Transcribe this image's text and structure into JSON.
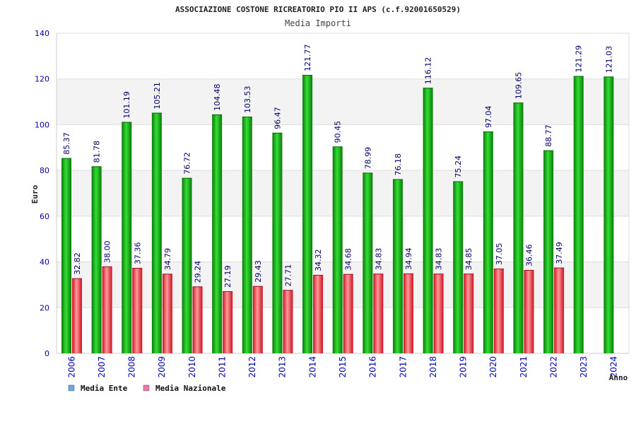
{
  "chart_data": {
    "type": "bar",
    "title": "ASSOCIAZIONE COSTONE RICREATORIO PIO II APS (c.f.92001650529)",
    "subtitle": "Media Importi",
    "xlabel": "Anno",
    "ylabel": "Euro",
    "ylim": [
      0,
      140
    ],
    "yticks": [
      "0",
      "20",
      "40",
      "60",
      "80",
      "100",
      "120",
      "140"
    ],
    "grid": true,
    "legend_position": "bottom-left",
    "categories": [
      "2006",
      "2007",
      "2008",
      "2009",
      "2010",
      "2011",
      "2012",
      "2013",
      "2014",
      "2015",
      "2016",
      "2017",
      "2018",
      "2019",
      "2020",
      "2021",
      "2022",
      "2023",
      "2024"
    ],
    "series": [
      {
        "name": "Media Ente",
        "color": "#22bb22",
        "legend_color": "#66aaee",
        "values": [
          85.37,
          81.78,
          101.19,
          105.21,
          76.72,
          104.48,
          103.53,
          96.47,
          121.77,
          90.45,
          78.99,
          76.18,
          116.12,
          75.24,
          97.04,
          109.65,
          88.77,
          121.29,
          121.03
        ],
        "labels": [
          "85.37",
          "81.78",
          "101.19",
          "105.21",
          "76.72",
          "104.48",
          "103.53",
          "96.47",
          "121.77",
          "90.45",
          "78.99",
          "76.18",
          "116.12",
          "75.24",
          "97.04",
          "109.65",
          "88.77",
          "121.29",
          "121.03"
        ]
      },
      {
        "name": "Media Nazionale",
        "color": "#ee3344",
        "legend_color": "#ee77aa",
        "values": [
          32.82,
          38.0,
          37.36,
          34.79,
          29.24,
          27.19,
          29.43,
          27.71,
          34.32,
          34.68,
          34.83,
          34.94,
          34.83,
          34.85,
          37.05,
          36.46,
          37.49,
          null,
          null
        ],
        "labels": [
          "32.82",
          "38.00",
          "37.36",
          "34.79",
          "29.24",
          "27.19",
          "29.43",
          "27.71",
          "34.32",
          "34.68",
          "34.83",
          "34.94",
          "34.83",
          "34.85",
          "37.05",
          "36.46",
          "37.49",
          "",
          ""
        ]
      }
    ]
  }
}
